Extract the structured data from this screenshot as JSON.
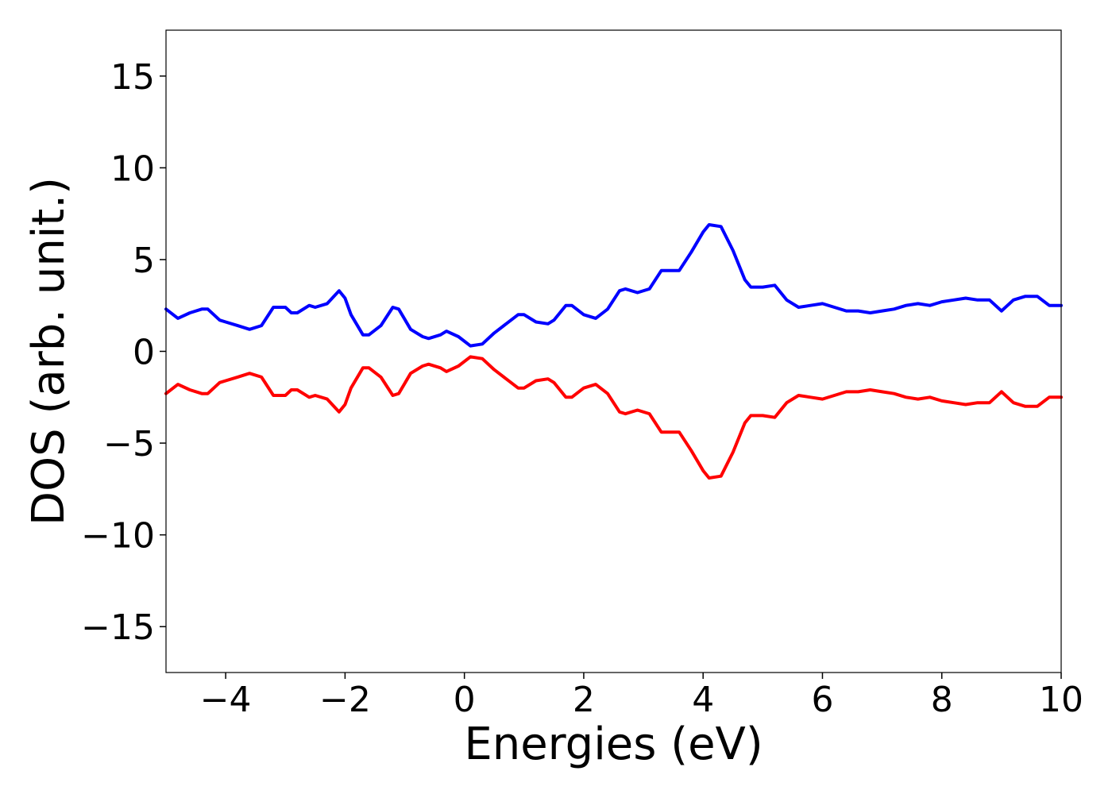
{
  "chart_data": {
    "type": "line",
    "title": "",
    "xlabel": "Energies (eV)",
    "ylabel": "DOS (arb. unit.)",
    "xlim": [
      -5,
      10
    ],
    "ylim": [
      -17.5,
      17.5
    ],
    "xticks": [
      -4,
      -2,
      0,
      2,
      4,
      6,
      8,
      10
    ],
    "xtick_labels": [
      "−4",
      "−2",
      "0",
      "2",
      "4",
      "6",
      "8",
      "10"
    ],
    "yticks": [
      -15,
      -10,
      -5,
      0,
      5,
      10,
      15
    ],
    "ytick_labels": [
      "−15",
      "−10",
      "−5",
      "0",
      "5",
      "10",
      "15"
    ],
    "grid": false,
    "legend": false,
    "x": [
      -5.0,
      -4.8,
      -4.6,
      -4.4,
      -4.3,
      -4.1,
      -4.0,
      -3.8,
      -3.6,
      -3.4,
      -3.2,
      -3.0,
      -2.9,
      -2.8,
      -2.6,
      -2.5,
      -2.3,
      -2.1,
      -2.0,
      -1.9,
      -1.7,
      -1.6,
      -1.4,
      -1.2,
      -1.1,
      -0.9,
      -0.7,
      -0.6,
      -0.4,
      -0.3,
      -0.1,
      0.1,
      0.3,
      0.5,
      0.7,
      0.9,
      1.0,
      1.2,
      1.4,
      1.5,
      1.7,
      1.8,
      2.0,
      2.2,
      2.4,
      2.6,
      2.7,
      2.9,
      3.1,
      3.3,
      3.4,
      3.6,
      3.8,
      4.0,
      4.1,
      4.3,
      4.5,
      4.7,
      4.8,
      5.0,
      5.2,
      5.4,
      5.6,
      5.8,
      6.0,
      6.2,
      6.4,
      6.6,
      6.8,
      7.0,
      7.2,
      7.4,
      7.6,
      7.8,
      8.0,
      8.2,
      8.4,
      8.6,
      8.8,
      9.0,
      9.2,
      9.4,
      9.6,
      9.8,
      10.0
    ],
    "series": [
      {
        "color": "#0000ff",
        "values": [
          2.3,
          1.8,
          2.1,
          2.3,
          2.3,
          1.7,
          1.6,
          1.4,
          1.2,
          1.4,
          2.4,
          2.4,
          2.1,
          2.1,
          2.5,
          2.4,
          2.6,
          3.3,
          2.9,
          2.0,
          0.9,
          0.9,
          1.4,
          2.4,
          2.3,
          1.2,
          0.8,
          0.7,
          0.9,
          1.1,
          0.8,
          0.3,
          0.4,
          1.0,
          1.5,
          2.0,
          2.0,
          1.6,
          1.5,
          1.7,
          2.5,
          2.5,
          2.0,
          1.8,
          2.3,
          3.3,
          3.4,
          3.2,
          3.4,
          4.4,
          4.4,
          4.4,
          5.4,
          6.5,
          6.9,
          6.8,
          5.5,
          3.9,
          3.5,
          3.5,
          3.6,
          2.8,
          2.4,
          2.5,
          2.6,
          2.4,
          2.2,
          2.2,
          2.1,
          2.2,
          2.3,
          2.5,
          2.6,
          2.5,
          2.7,
          2.8,
          2.9,
          2.8,
          2.8,
          2.2,
          2.8,
          3.0,
          3.0,
          2.5,
          2.5
        ]
      },
      {
        "color": "#ff0000",
        "values": [
          -2.3,
          -1.8,
          -2.1,
          -2.3,
          -2.3,
          -1.7,
          -1.6,
          -1.4,
          -1.2,
          -1.4,
          -2.4,
          -2.4,
          -2.1,
          -2.1,
          -2.5,
          -2.4,
          -2.6,
          -3.3,
          -2.9,
          -2.0,
          -0.9,
          -0.9,
          -1.4,
          -2.4,
          -2.3,
          -1.2,
          -0.8,
          -0.7,
          -0.9,
          -1.1,
          -0.8,
          -0.3,
          -0.4,
          -1.0,
          -1.5,
          -2.0,
          -2.0,
          -1.6,
          -1.5,
          -1.7,
          -2.5,
          -2.5,
          -2.0,
          -1.8,
          -2.3,
          -3.3,
          -3.4,
          -3.2,
          -3.4,
          -4.4,
          -4.4,
          -4.4,
          -5.4,
          -6.5,
          -6.9,
          -6.8,
          -5.5,
          -3.9,
          -3.5,
          -3.5,
          -3.6,
          -2.8,
          -2.4,
          -2.5,
          -2.6,
          -2.4,
          -2.2,
          -2.2,
          -2.1,
          -2.2,
          -2.3,
          -2.5,
          -2.6,
          -2.5,
          -2.7,
          -2.8,
          -2.9,
          -2.8,
          -2.8,
          -2.2,
          -2.8,
          -3.0,
          -3.0,
          -2.5,
          -2.5
        ]
      }
    ]
  }
}
